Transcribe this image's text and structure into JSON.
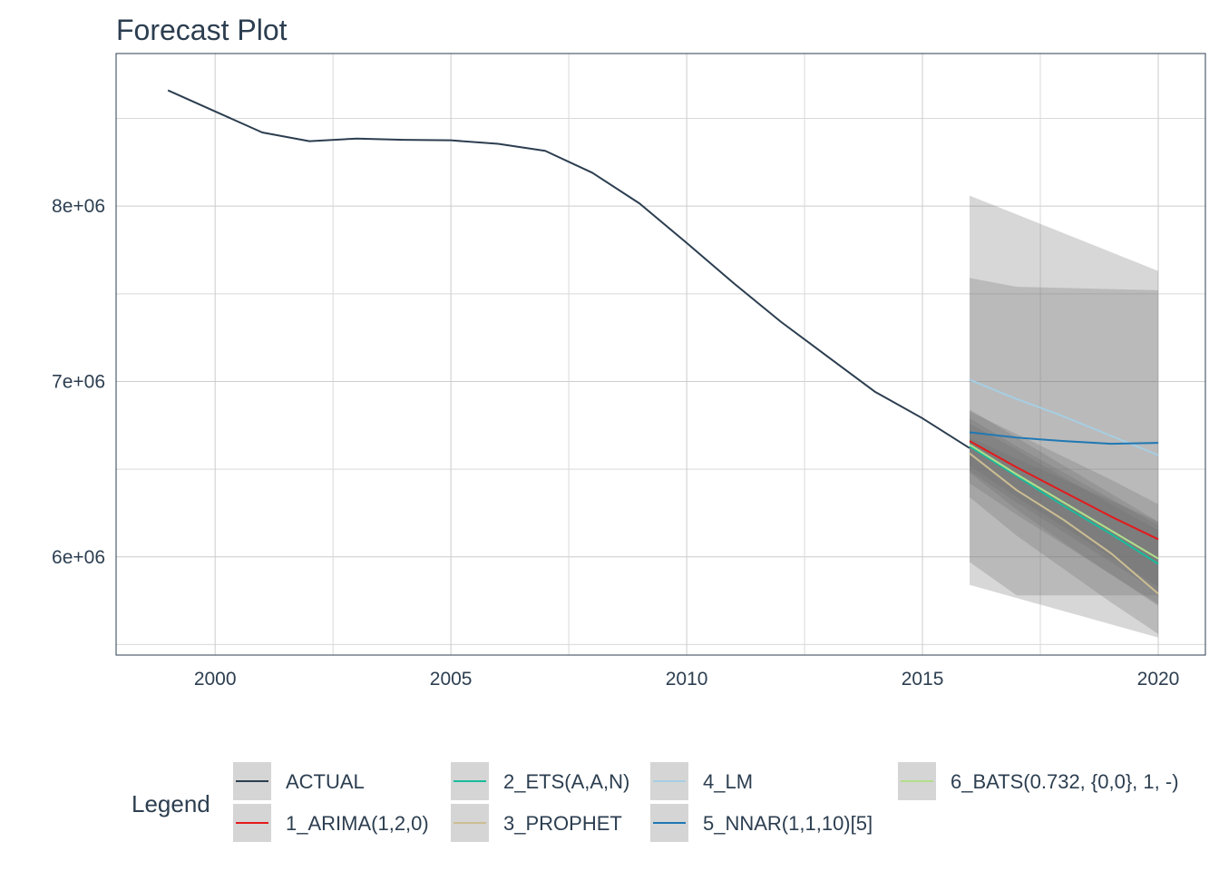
{
  "chart_data": {
    "type": "line",
    "title": "Forecast Plot",
    "xlabel": "",
    "ylabel": "",
    "xlim": [
      1997.9,
      2021.0
    ],
    "ylim": [
      5440000,
      8870000
    ],
    "grid": true,
    "legend_placement": "bottom",
    "x_ticks": [
      2000,
      2005,
      2010,
      2015,
      2020
    ],
    "x_tick_labels": [
      "2000",
      "2005",
      "2010",
      "2015",
      "2020"
    ],
    "y_ticks": [
      6000000,
      7000000,
      8000000
    ],
    "y_tick_labels": [
      "6e+06",
      "7e+06",
      "8e+06"
    ],
    "y_minor_ticks": [
      5500000,
      6500000,
      7500000,
      8500000
    ],
    "legend_title": "Legend",
    "series": [
      {
        "name": "ACTUAL",
        "color": "#2c3e50",
        "x": [
          1999,
          2000,
          2001,
          2002,
          2003,
          2004,
          2005,
          2006,
          2007,
          2008,
          2009,
          2010,
          2011,
          2012,
          2013,
          2014,
          2015,
          2016
        ],
        "y": [
          8660000,
          8540000,
          8420000,
          8370000,
          8385000,
          8378000,
          8375000,
          8355000,
          8315000,
          8190000,
          8015000,
          7790000,
          7560000,
          7340000,
          7140000,
          6940000,
          6790000,
          6620000
        ]
      },
      {
        "name": "1_ARIMA(1,2,0)",
        "color": "#e31a1c",
        "x": [
          2016,
          2017,
          2018,
          2019,
          2020
        ],
        "y": [
          6660000,
          6510000,
          6370000,
          6230000,
          6100000
        ]
      },
      {
        "name": "2_ETS(A,A,N)",
        "color": "#18bc9c",
        "x": [
          2016,
          2017,
          2018,
          2019,
          2020
        ],
        "y": [
          6630000,
          6460000,
          6290000,
          6130000,
          5960000
        ]
      },
      {
        "name": "3_PROPHET",
        "color": "#ccbe93",
        "x": [
          2016,
          2017,
          2018,
          2019,
          2020
        ],
        "y": [
          6590000,
          6380000,
          6210000,
          6020000,
          5790000
        ]
      },
      {
        "name": "4_LM",
        "color": "#a6cee3",
        "x": [
          2016,
          2017,
          2018,
          2019,
          2020
        ],
        "y": [
          7010000,
          6900000,
          6800000,
          6690000,
          6580000
        ]
      },
      {
        "name": "5_NNAR(1,1,10)[5]",
        "color": "#1f78b4",
        "x": [
          2016,
          2017,
          2018,
          2019,
          2020
        ],
        "y": [
          6710000,
          6680000,
          6660000,
          6645000,
          6650000
        ]
      },
      {
        "name": "6_BATS(0.732, {0,0}, 1, -)",
        "color": "#b2df8a",
        "x": [
          2016,
          2017,
          2018,
          2019,
          2020
        ],
        "y": [
          6640000,
          6470000,
          6310000,
          6150000,
          5990000
        ]
      }
    ],
    "bands": [
      {
        "x": [
          2016,
          2020
        ],
        "lo": [
          5840000,
          5540000
        ],
        "hi": [
          8060000,
          7630000
        ]
      },
      {
        "x": [
          2016,
          2017,
          2020
        ],
        "lo": [
          5970000,
          5780000,
          5780000
        ],
        "hi": [
          7590000,
          7540000,
          7520000
        ]
      },
      {
        "x": [
          2016,
          2017,
          2018,
          2019,
          2020
        ],
        "lo": [
          6340000,
          6120000,
          5930000,
          5740000,
          5560000
        ],
        "hi": [
          6830000,
          6700000,
          6570000,
          6440000,
          6300000
        ]
      },
      {
        "x": [
          2016,
          2017,
          2018,
          2019,
          2020
        ],
        "lo": [
          6420000,
          6240000,
          6070000,
          5900000,
          5730000
        ],
        "hi": [
          6840000,
          6680000,
          6520000,
          6360000,
          6200000
        ]
      },
      {
        "x": [
          2016,
          2017,
          2018,
          2019,
          2020
        ],
        "lo": [
          6480000,
          6270000,
          6080000,
          5900000,
          5720000
        ],
        "hi": [
          6680000,
          6560000,
          6440000,
          6320000,
          6200000
        ]
      },
      {
        "x": [
          2016,
          2017,
          2018,
          2019,
          2020
        ],
        "lo": [
          6490000,
          6310000,
          6140000,
          5970000,
          5800000
        ],
        "hi": [
          6790000,
          6630000,
          6480000,
          6330000,
          6180000
        ]
      },
      {
        "x": [
          2016,
          2017,
          2018,
          2019,
          2020
        ],
        "lo": [
          6520000,
          6340000,
          6170000,
          6000000,
          5830000
        ],
        "hi": [
          6760000,
          6610000,
          6450000,
          6300000,
          6150000
        ]
      }
    ]
  }
}
